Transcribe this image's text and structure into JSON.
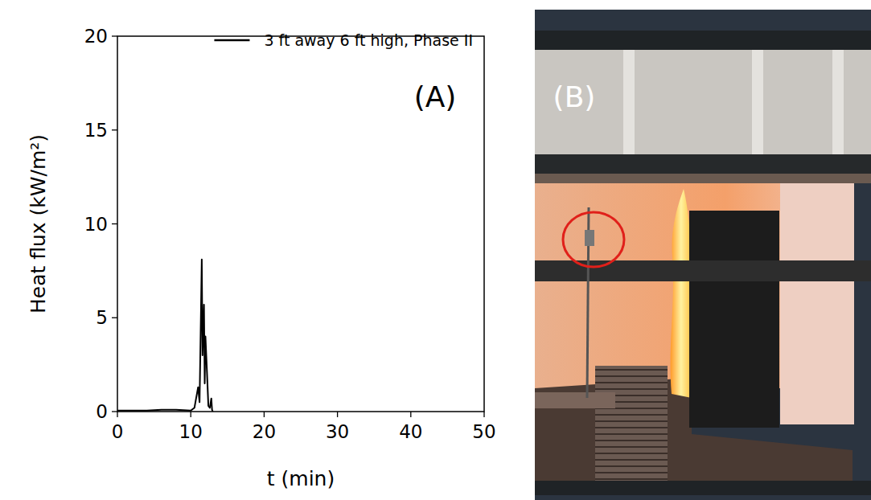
{
  "chart_data": {
    "type": "line",
    "annotation": "(A)",
    "x_label": "t (min)",
    "y_label": "Heat flux (kW/m²)",
    "x": [
      0,
      1,
      2,
      3,
      4,
      5,
      6,
      7,
      8,
      9,
      10,
      10.5,
      11,
      11.2,
      11.4,
      11.5,
      11.6,
      11.8,
      11.9,
      12.0,
      12.2,
      12.4,
      12.6,
      12.8,
      12.9,
      13.0
    ],
    "series": [
      {
        "name": "3 ft away 6 ft high, Phase II",
        "color": "#000000",
        "values": [
          0.05,
          0.05,
          0.05,
          0.05,
          0.05,
          0.08,
          0.1,
          0.1,
          0.1,
          0.08,
          0.05,
          0.2,
          1.3,
          0.5,
          5.5,
          8.1,
          3.0,
          5.7,
          1.5,
          4.0,
          2.2,
          0.3,
          0.2,
          0.7,
          0.1,
          0
        ]
      }
    ],
    "xlim": [
      0,
      50
    ],
    "xticks": [
      0,
      10,
      20,
      30,
      40,
      50
    ],
    "ylim": [
      0,
      20
    ],
    "yticks": [
      0,
      5,
      10,
      15,
      20
    ],
    "grid": false,
    "legend": "upper right"
  },
  "photo": {
    "label": "(B)"
  }
}
